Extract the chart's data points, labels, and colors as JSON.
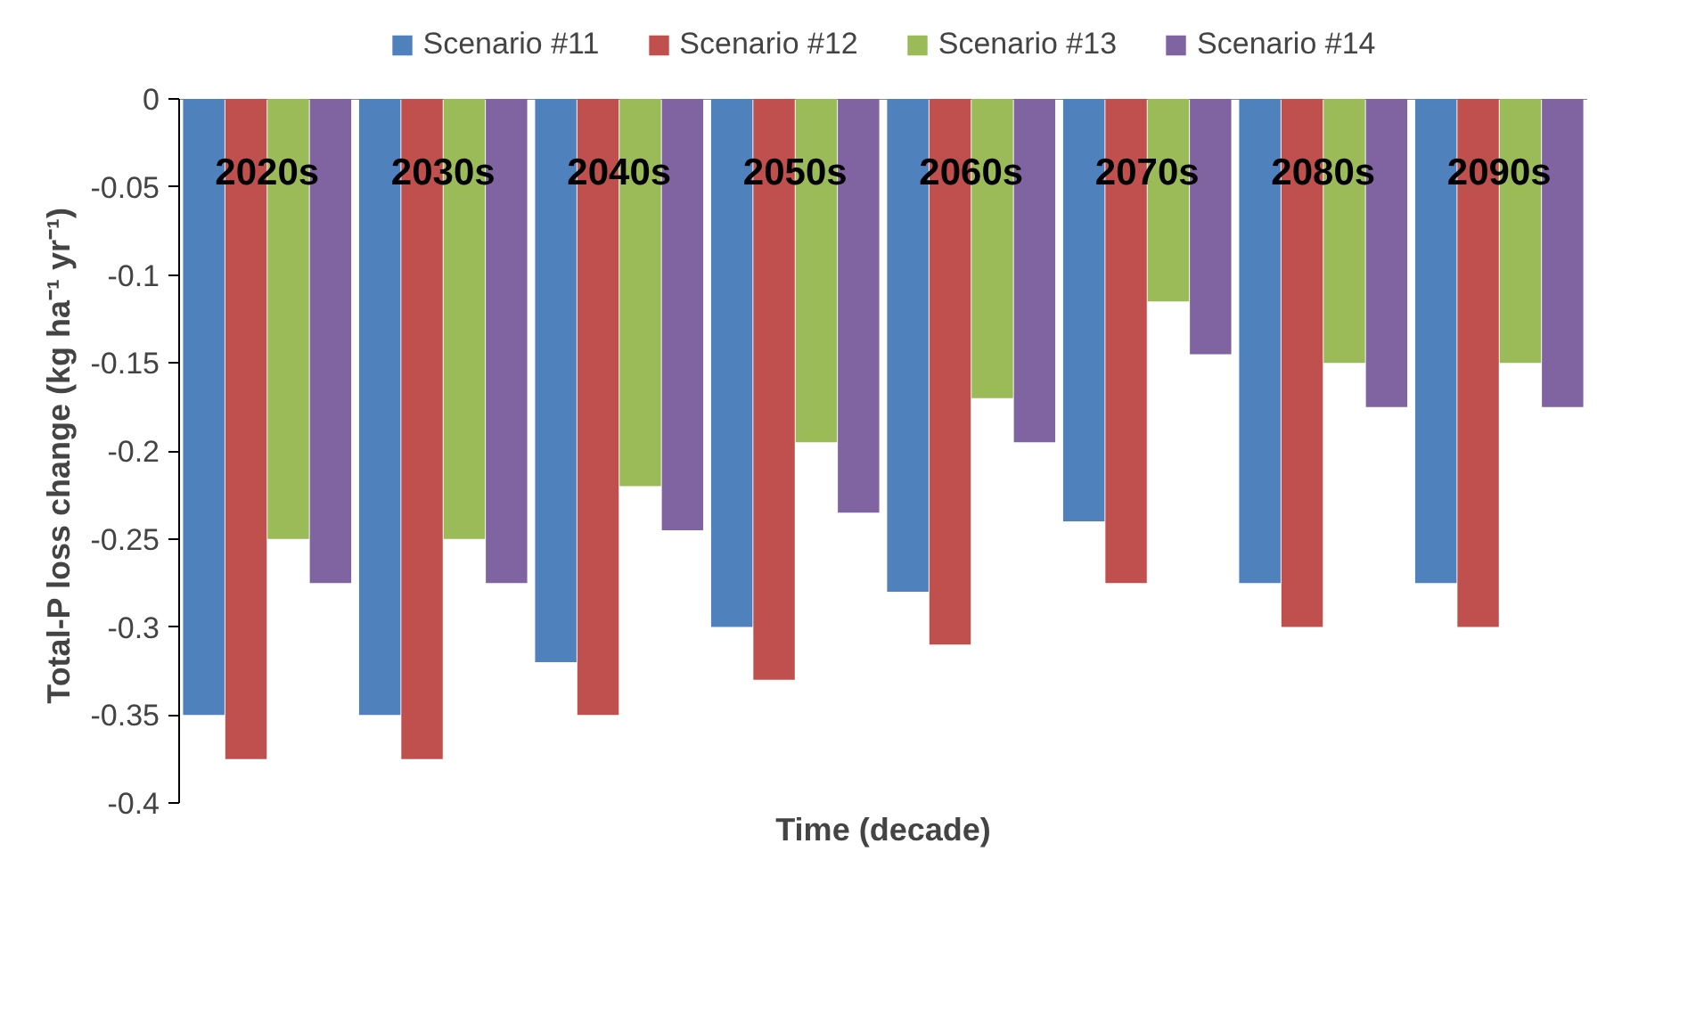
{
  "chart_data": {
    "type": "bar",
    "xlabel": "Time (decade)",
    "ylabel": "Total-P loss change (kg ha⁻¹  yr⁻¹)",
    "categories": [
      "2020s",
      "2030s",
      "2040s",
      "2050s",
      "2060s",
      "2070s",
      "2080s",
      "2090s"
    ],
    "series": [
      {
        "name": "Scenario #11",
        "color": "#4f81bd",
        "values": [
          -0.35,
          -0.35,
          -0.32,
          -0.3,
          -0.28,
          -0.24,
          -0.275,
          -0.275
        ]
      },
      {
        "name": "Scenario #12",
        "color": "#c0504d",
        "values": [
          -0.375,
          -0.375,
          -0.35,
          -0.33,
          -0.31,
          -0.275,
          -0.3,
          -0.3
        ]
      },
      {
        "name": "Scenario #13",
        "color": "#9bbb59",
        "values": [
          -0.25,
          -0.25,
          -0.22,
          -0.195,
          -0.17,
          -0.115,
          -0.15,
          -0.15
        ]
      },
      {
        "name": "Scenario #14",
        "color": "#8064a2",
        "values": [
          -0.275,
          -0.275,
          -0.245,
          -0.235,
          -0.195,
          -0.145,
          -0.175,
          -0.175
        ]
      }
    ],
    "ylim": [
      -0.4,
      0
    ],
    "yticks": [
      0,
      -0.05,
      -0.1,
      -0.15,
      -0.2,
      -0.25,
      -0.3,
      -0.35,
      -0.4
    ],
    "grid": false,
    "legend": "top"
  }
}
